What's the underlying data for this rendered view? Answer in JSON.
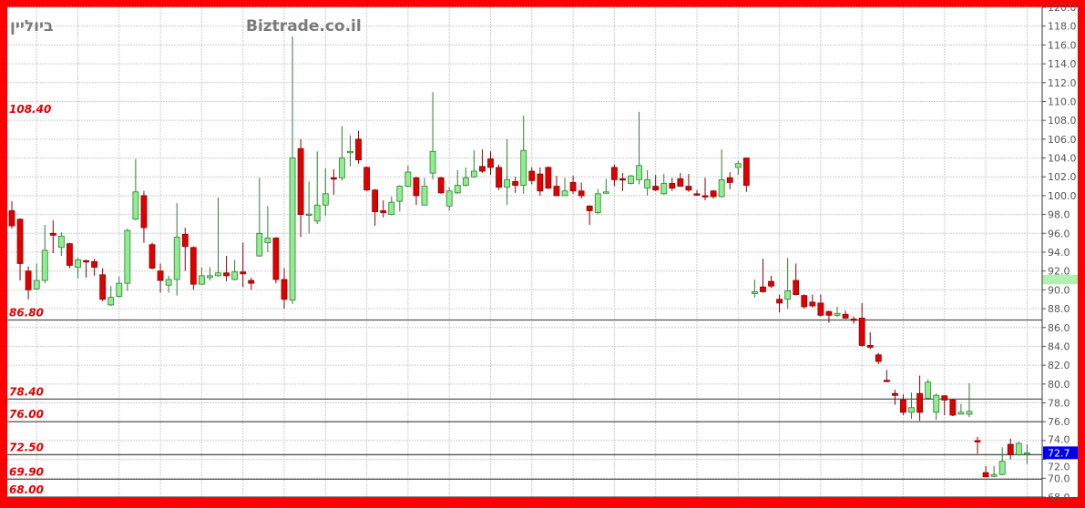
{
  "header": {
    "instrument_name": "ביוליין",
    "site_name": "Biztrade.co.il"
  },
  "colors": {
    "frame": "#ff0000",
    "up_fill": "#90ee90",
    "up_stroke": "#2e7d32",
    "down_fill": "#e00000",
    "down_stroke": "#8b0000",
    "level_label": "#e00000",
    "last_price_bg": "#0000ee",
    "axis_highlight": "#b0f0b0"
  },
  "last_price_label": "72.7",
  "axis_highlight": {
    "from": 90.6,
    "to": 91.6
  },
  "chart_data": {
    "type": "candlestick",
    "title": "",
    "xlabel": "",
    "ylabel": "",
    "ylim": [
      68,
      120
    ],
    "grid": true,
    "y_axis_position": "right",
    "y_ticks": [
      "68.0",
      "70.0",
      "72.0",
      "74.0",
      "76.0",
      "78.0",
      "80.0",
      "82.0",
      "84.0",
      "86.0",
      "88.0",
      "90.0",
      "92.0",
      "94.0",
      "96.0",
      "98.0",
      "100.0",
      "102.0",
      "104.0",
      "106.0",
      "108.0",
      "110.0",
      "112.0",
      "114.0",
      "116.0",
      "118.0",
      "120.0"
    ],
    "levels": [
      {
        "label": "108.40",
        "value": 108.4,
        "line": false
      },
      {
        "label": "86.80",
        "value": 86.8,
        "line": true
      },
      {
        "label": "78.40",
        "value": 78.4,
        "line": true
      },
      {
        "label": "76.00",
        "value": 76.0,
        "line": true
      },
      {
        "label": "72.50",
        "value": 72.5,
        "line": true
      },
      {
        "label": "69.90",
        "value": 69.9,
        "line": true
      },
      {
        "label": "68.00",
        "value": 68.0,
        "line": true
      }
    ],
    "ohlc_fields": [
      "open",
      "high",
      "low",
      "close"
    ],
    "ohlc": [
      [
        98.4,
        99.4,
        96.5,
        96.8
      ],
      [
        97.5,
        97.6,
        91.0,
        92.8
      ],
      [
        92.0,
        92.5,
        89.0,
        90.0
      ],
      [
        90.1,
        92.8,
        90.0,
        91.0
      ],
      [
        91.0,
        96.9,
        90.7,
        94.2
      ],
      [
        96.0,
        97.4,
        93.9,
        95.8
      ],
      [
        94.5,
        96.1,
        93.6,
        95.7
      ],
      [
        94.9,
        95.0,
        92.3,
        92.6
      ],
      [
        92.4,
        93.4,
        91.2,
        93.2
      ],
      [
        93.1,
        93.2,
        91.3,
        93.0
      ],
      [
        93.0,
        93.3,
        91.5,
        92.4
      ],
      [
        91.6,
        92.3,
        88.8,
        89.0
      ],
      [
        88.4,
        90.4,
        88.3,
        89.2
      ],
      [
        89.3,
        91.4,
        89.2,
        90.7
      ],
      [
        90.7,
        96.5,
        89.9,
        96.3
      ],
      [
        97.5,
        103.9,
        97.4,
        100.4
      ],
      [
        100.0,
        100.5,
        95.0,
        96.6
      ],
      [
        94.8,
        95.0,
        92.2,
        92.3
      ],
      [
        92.0,
        92.8,
        89.7,
        91.0
      ],
      [
        90.5,
        91.5,
        89.7,
        91.1
      ],
      [
        91.1,
        99.2,
        89.4,
        95.6
      ],
      [
        95.9,
        96.6,
        92.0,
        94.6
      ],
      [
        94.5,
        94.6,
        90.0,
        90.6
      ],
      [
        90.6,
        92.4,
        90.6,
        91.5
      ],
      [
        91.3,
        92.4,
        91.0,
        91.5
      ],
      [
        91.5,
        99.8,
        91.4,
        91.8
      ],
      [
        91.8,
        93.6,
        90.9,
        91.5
      ],
      [
        91.1,
        93.2,
        91.0,
        91.9
      ],
      [
        91.9,
        95.0,
        90.3,
        91.7
      ],
      [
        91.0,
        91.3,
        90.0,
        90.7
      ],
      [
        93.6,
        101.9,
        93.5,
        96.0
      ],
      [
        95.0,
        98.9,
        94.0,
        95.5
      ],
      [
        95.5,
        95.6,
        90.7,
        91.1
      ],
      [
        91.1,
        92.3,
        88.0,
        89.0
      ],
      [
        88.9,
        116.9,
        88.5,
        104.0
      ],
      [
        105.0,
        106.0,
        95.6,
        98.0
      ],
      [
        98.0,
        101.5,
        96.0,
        98.05
      ],
      [
        97.3,
        104.7,
        97.0,
        99.0
      ],
      [
        99.0,
        102.9,
        97.9,
        100.2
      ],
      [
        101.9,
        102.8,
        100.1,
        101.8
      ],
      [
        101.9,
        107.4,
        101.6,
        104.0
      ],
      [
        104.6,
        106.4,
        103.1,
        104.7
      ],
      [
        106.0,
        106.9,
        103.4,
        103.8
      ],
      [
        103.0,
        103.1,
        100.5,
        100.6
      ],
      [
        100.6,
        100.7,
        96.8,
        98.3
      ],
      [
        98.4,
        99.5,
        97.7,
        98.2
      ],
      [
        98.0,
        99.9,
        97.9,
        99.3
      ],
      [
        99.4,
        101.1,
        98.3,
        101.0
      ],
      [
        101.0,
        103.2,
        100.9,
        102.5
      ],
      [
        101.9,
        102.0,
        99.0,
        100.0
      ],
      [
        99.0,
        101.9,
        99.0,
        101.0
      ],
      [
        102.4,
        111.0,
        101.7,
        104.7
      ],
      [
        101.9,
        102.0,
        100.2,
        100.3
      ],
      [
        98.9,
        100.9,
        98.4,
        100.5
      ],
      [
        100.3,
        102.7,
        100.2,
        101.1
      ],
      [
        101.1,
        103.0,
        101.0,
        101.9
      ],
      [
        102.0,
        104.8,
        101.9,
        102.6
      ],
      [
        103.1,
        104.9,
        102.4,
        102.6
      ],
      [
        103.9,
        104.7,
        102.2,
        103.0
      ],
      [
        103.0,
        103.3,
        100.6,
        100.9
      ],
      [
        100.9,
        106.0,
        99.0,
        101.7
      ],
      [
        101.5,
        102.0,
        100.3,
        101.1
      ],
      [
        101.1,
        108.5,
        100.2,
        104.8
      ],
      [
        102.6,
        103.0,
        101.2,
        101.6
      ],
      [
        102.3,
        103.0,
        100.0,
        100.5
      ],
      [
        103.0,
        103.1,
        100.7,
        100.8
      ],
      [
        101.0,
        102.1,
        100.0,
        100.0
      ],
      [
        100.0,
        101.9,
        100.0,
        100.5
      ],
      [
        101.4,
        102.1,
        100.2,
        100.5
      ],
      [
        100.5,
        101.4,
        99.7,
        100.0
      ],
      [
        98.9,
        99.0,
        96.9,
        98.4
      ],
      [
        98.2,
        100.7,
        98.0,
        100.2
      ],
      [
        100.3,
        101.8,
        100.3,
        100.4
      ],
      [
        103.0,
        103.3,
        101.0,
        101.7
      ],
      [
        101.8,
        102.4,
        100.5,
        101.7
      ],
      [
        101.3,
        102.2,
        101.2,
        102.1
      ],
      [
        101.7,
        108.9,
        101.2,
        103.2
      ],
      [
        100.8,
        102.7,
        100.0,
        101.7
      ],
      [
        101.0,
        102.2,
        100.5,
        100.6
      ],
      [
        100.2,
        102.3,
        100.1,
        101.3
      ],
      [
        101.3,
        101.9,
        100.5,
        100.8
      ],
      [
        101.8,
        102.4,
        101.0,
        101.0
      ],
      [
        101.0,
        102.3,
        100.4,
        100.6
      ],
      [
        100.2,
        100.6,
        100.0,
        100.1
      ],
      [
        100.0,
        101.9,
        99.5,
        99.9
      ],
      [
        100.5,
        100.6,
        99.7,
        99.9
      ],
      [
        99.9,
        104.9,
        99.8,
        101.7
      ],
      [
        101.9,
        102.5,
        100.7,
        101.4
      ],
      [
        103.0,
        103.7,
        102.2,
        103.4
      ],
      [
        104.0,
        104.0,
        100.4,
        101.1
      ],
      [
        89.6,
        91.1,
        89.2,
        89.8
      ],
      [
        90.3,
        93.3,
        89.7,
        89.8
      ],
      [
        90.9,
        91.5,
        90.2,
        90.4
      ],
      [
        89.0,
        89.5,
        87.6,
        88.6
      ],
      [
        89.0,
        93.4,
        88.0,
        89.9
      ],
      [
        91.0,
        92.8,
        89.4,
        89.5
      ],
      [
        89.4,
        89.5,
        88.0,
        88.2
      ],
      [
        88.7,
        89.5,
        88.1,
        88.3
      ],
      [
        88.6,
        89.5,
        87.2,
        87.3
      ],
      [
        87.7,
        87.8,
        86.5,
        87.3
      ],
      [
        87.3,
        88.2,
        87.1,
        87.5
      ],
      [
        87.4,
        87.8,
        86.9,
        87.0
      ],
      [
        86.9,
        87.2,
        86.4,
        86.85
      ],
      [
        87.0,
        88.6,
        84.0,
        84.1
      ],
      [
        84.1,
        85.5,
        83.7,
        83.9
      ],
      [
        83.1,
        83.3,
        82.1,
        82.4
      ],
      [
        80.4,
        81.5,
        80.2,
        80.3
      ],
      [
        79.0,
        79.4,
        77.8,
        78.8
      ],
      [
        78.3,
        78.9,
        76.7,
        77.0
      ],
      [
        77.0,
        79.1,
        76.3,
        77.5
      ],
      [
        79.0,
        80.9,
        76.1,
        77.0
      ],
      [
        78.5,
        80.5,
        78.3,
        80.2
      ],
      [
        77.0,
        79.0,
        76.2,
        78.8
      ],
      [
        78.75,
        78.8,
        76.7,
        78.3
      ],
      [
        78.3,
        78.4,
        76.6,
        76.7
      ],
      [
        76.8,
        77.9,
        76.8,
        77.0
      ],
      [
        76.8,
        80.1,
        76.5,
        77.1
      ],
      [
        74.0,
        74.4,
        72.6,
        73.85
      ],
      [
        70.6,
        71.3,
        70.1,
        70.15
      ],
      [
        70.2,
        71.3,
        70.1,
        70.4
      ],
      [
        70.4,
        73.3,
        70.3,
        71.8
      ],
      [
        73.6,
        74.2,
        72.0,
        72.5
      ],
      [
        72.5,
        73.9,
        72.4,
        73.7
      ],
      [
        72.6,
        73.6,
        71.5,
        72.7
      ]
    ]
  }
}
